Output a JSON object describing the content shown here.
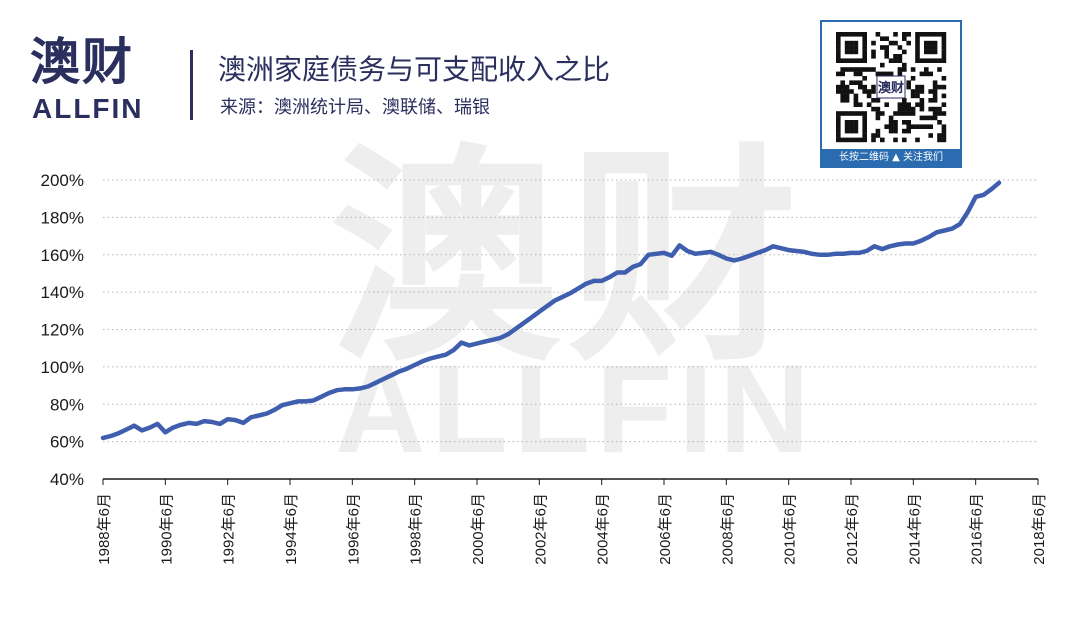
{
  "brand": {
    "logo_cn": "澳财",
    "logo_en": "ALLFIN",
    "qr_caption": "长按二维码 ▲ 关注我们",
    "watermark_cn": "澳财",
    "watermark_en": "ALLFIN",
    "color": "#2b2f5e"
  },
  "chart_data": {
    "type": "line",
    "title": "澳洲家庭债务与可支配收入之比",
    "subtitle": "来源：澳洲统计局、澳联储、瑞银",
    "xlabel": "",
    "ylabel": "",
    "x_ticks": [
      "1988年6月",
      "1990年6月",
      "1992年6月",
      "1994年6月",
      "1996年6月",
      "1998年6月",
      "2000年6月",
      "2002年6月",
      "2004年6月",
      "2006年6月",
      "2008年6月",
      "2010年6月",
      "2012年6月",
      "2014年6月",
      "2016年6月",
      "2018年6月"
    ],
    "y_ticks": [
      "40%",
      "60%",
      "80%",
      "100%",
      "120%",
      "140%",
      "160%",
      "180%",
      "200%"
    ],
    "xlim": [
      1988.5,
      2018.5
    ],
    "ylim": [
      40,
      200
    ],
    "grid": "horizontal dotted",
    "line_color": "#3f5fae",
    "series": [
      {
        "x": [
          1988.5,
          1988.75,
          1989.0,
          1989.25,
          1989.5,
          1989.75,
          1990.0,
          1990.25,
          1990.5,
          1990.75,
          1991.0,
          1991.25,
          1991.5,
          1991.75,
          1992.0,
          1992.25,
          1992.5,
          1992.75,
          1993.0,
          1993.25,
          1993.5,
          1993.75,
          1994.0,
          1994.25,
          1994.5,
          1994.75,
          1995.0,
          1995.25,
          1995.5,
          1995.75,
          1996.0,
          1996.25,
          1996.5,
          1996.75,
          1997.0,
          1997.25,
          1997.5,
          1997.75,
          1998.0,
          1998.25,
          1998.5,
          1998.75,
          1999.0,
          1999.25,
          1999.5,
          1999.75,
          2000.0,
          2000.25,
          2000.5,
          2000.75,
          2001.0,
          2001.25,
          2001.5,
          2001.75,
          2002.0,
          2002.25,
          2002.5,
          2002.75,
          2003.0,
          2003.25,
          2003.5,
          2003.75,
          2004.0,
          2004.25,
          2004.5,
          2004.75,
          2005.0,
          2005.25,
          2005.5,
          2005.75,
          2006.0,
          2006.25,
          2006.5,
          2006.75,
          2007.0,
          2007.25,
          2007.5,
          2007.75,
          2008.0,
          2008.25,
          2008.5,
          2008.75,
          2009.0,
          2009.25,
          2009.5,
          2009.75,
          2010.0,
          2010.25,
          2010.5,
          2010.75,
          2011.0,
          2011.25,
          2011.5,
          2011.75,
          2012.0,
          2012.25,
          2012.5,
          2012.75,
          2013.0,
          2013.25,
          2013.5,
          2013.75,
          2014.0,
          2014.25,
          2014.5,
          2014.75,
          2015.0,
          2015.25,
          2015.5,
          2015.75,
          2016.0,
          2016.25,
          2016.5,
          2016.75,
          2017.0,
          2017.25
        ],
        "y": [
          62,
          63,
          64.5,
          66.5,
          68.5,
          66,
          67.5,
          69.5,
          65,
          67.5,
          69,
          70,
          69.5,
          71,
          70.5,
          69.5,
          72,
          71.5,
          70,
          73,
          74,
          75,
          77,
          79.5,
          80.5,
          81.5,
          81.5,
          82,
          84,
          86,
          87.5,
          88,
          88,
          88.5,
          89.5,
          91.5,
          93.5,
          95.5,
          97.5,
          99,
          101,
          103,
          104.5,
          105.5,
          106.5,
          109,
          113,
          111.5,
          112.5,
          113.5,
          114.5,
          115.5,
          117.5,
          120.5,
          123.5,
          126.5,
          129.5,
          132.5,
          135.5,
          137.5,
          139.5,
          142,
          144.5,
          146,
          146,
          148,
          150.5,
          150.5,
          153.5,
          155,
          160,
          160.5,
          161,
          159.5,
          165,
          162,
          160.5,
          161,
          161.5,
          160,
          158,
          157,
          158,
          159.5,
          161,
          162.5,
          164.5,
          163.5,
          162.5,
          162,
          161.5,
          160.5,
          160,
          160,
          160.5,
          160.5,
          161,
          161,
          162,
          164.5,
          163,
          164.5,
          165.5,
          166,
          166,
          167.5,
          169.5,
          172,
          173,
          174,
          176.5,
          183,
          191,
          192,
          195,
          198.5
        ]
      }
    ]
  }
}
